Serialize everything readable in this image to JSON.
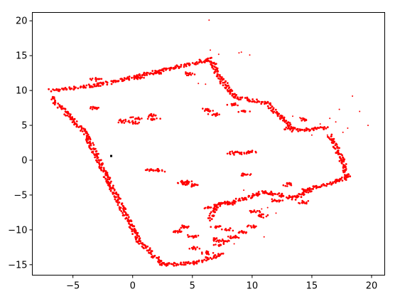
{
  "colors": {
    "points": "#ff0000",
    "robot": "#000000",
    "axes": "#000000",
    "background": "#ffffff"
  },
  "chart_data": {
    "type": "scatter",
    "title": "",
    "xlabel": "",
    "ylabel": "",
    "xlim": [
      -8.4,
      21.1
    ],
    "ylim": [
      -16.5,
      21.2
    ],
    "xticks": [
      -5,
      0,
      5,
      10,
      15,
      20
    ],
    "yticks": [
      -15,
      -10,
      -5,
      0,
      5,
      10,
      15,
      20
    ],
    "xtick_labels": [
      "−5",
      "0",
      "5",
      "10",
      "15",
      "20"
    ],
    "ytick_labels": [
      "−15",
      "−10",
      "−5",
      "0",
      "5",
      "10",
      "15",
      "20"
    ],
    "grid": false,
    "legend": "none",
    "robot_marker": {
      "x": -1.8,
      "y": 0.6
    },
    "wall_segments": [
      [
        [
          -6.8,
          10.0
        ],
        [
          -2.8,
          10.8
        ]
      ],
      [
        [
          -2.8,
          10.8
        ],
        [
          6.5,
          14.5
        ]
      ],
      [
        [
          -6.8,
          9.0
        ],
        [
          -4.0,
          4.0
        ]
      ],
      [
        [
          -4.0,
          4.0
        ],
        [
          -3.3,
          1.5
        ]
      ],
      [
        [
          -3.3,
          1.5
        ],
        [
          -2.0,
          -3.0
        ]
      ],
      [
        [
          -2.0,
          -3.0
        ],
        [
          0.5,
          -11.5
        ]
      ],
      [
        [
          0.5,
          -11.5
        ],
        [
          2.5,
          -15.0
        ]
      ],
      [
        [
          2.5,
          -15.0
        ],
        [
          5.0,
          -14.8
        ]
      ],
      [
        [
          5.0,
          -14.8
        ],
        [
          7.5,
          -13.5
        ]
      ],
      [
        [
          6.5,
          14.5
        ],
        [
          7.4,
          11.5
        ]
      ],
      [
        [
          7.4,
          11.5
        ],
        [
          8.7,
          9.0
        ]
      ],
      [
        [
          8.7,
          9.0
        ],
        [
          11.2,
          8.2
        ]
      ],
      [
        [
          11.2,
          8.2
        ],
        [
          12.5,
          6.0
        ]
      ],
      [
        [
          12.5,
          6.0
        ],
        [
          13.5,
          4.3
        ]
      ],
      [
        [
          13.5,
          4.3
        ],
        [
          16.2,
          4.6
        ]
      ],
      [
        [
          16.5,
          3.5
        ],
        [
          17.3,
          1.0
        ]
      ],
      [
        [
          17.3,
          1.0
        ],
        [
          18.0,
          -2.5
        ]
      ],
      [
        [
          18.0,
          -2.5
        ],
        [
          16.5,
          -3.3
        ]
      ],
      [
        [
          16.5,
          -3.3
        ],
        [
          15.0,
          -4.0
        ]
      ],
      [
        [
          15.0,
          -4.0
        ],
        [
          13.5,
          -5.5
        ]
      ],
      [
        [
          13.5,
          -5.5
        ],
        [
          11.0,
          -4.5
        ]
      ],
      [
        [
          11.0,
          -4.5
        ],
        [
          9.5,
          -5.5
        ]
      ],
      [
        [
          9.5,
          -5.5
        ],
        [
          7.0,
          -6.5
        ]
      ],
      [
        [
          7.0,
          -6.5
        ],
        [
          6.5,
          -8.5
        ]
      ]
    ],
    "blobs": [
      [
        -0.8,
        5.6
      ],
      [
        0.0,
        5.4
      ],
      [
        0.3,
        6.0
      ],
      [
        1.6,
        6.4
      ],
      [
        1.8,
        5.9
      ],
      [
        -3.0,
        7.5
      ],
      [
        -3.0,
        11.6
      ],
      [
        0.4,
        11.8
      ],
      [
        2.2,
        12.6
      ],
      [
        4.7,
        12.4
      ],
      [
        6.2,
        7.2
      ],
      [
        6.8,
        6.6
      ],
      [
        9.3,
        7.1
      ],
      [
        8.4,
        8.0
      ],
      [
        1.6,
        -1.4
      ],
      [
        2.2,
        -1.5
      ],
      [
        4.2,
        -3.4
      ],
      [
        5.1,
        -3.6
      ],
      [
        4.5,
        -3.1
      ],
      [
        8.4,
        1.0
      ],
      [
        9.0,
        1.0
      ],
      [
        9.8,
        1.2
      ],
      [
        9.4,
        -2.0
      ],
      [
        5.2,
        -12.6
      ],
      [
        6.3,
        -13.3
      ],
      [
        7.3,
        -12.2
      ],
      [
        8.0,
        -10.0
      ],
      [
        8.5,
        -11.0
      ],
      [
        9.2,
        -10.4
      ],
      [
        10.0,
        -9.5
      ],
      [
        10.8,
        -8.0
      ],
      [
        7.0,
        -9.6
      ],
      [
        6.8,
        -11.4
      ],
      [
        7.6,
        -11.6
      ],
      [
        4.4,
        -9.6
      ],
      [
        3.9,
        -10.2
      ],
      [
        5.0,
        -10.9
      ],
      [
        6.4,
        -6.8
      ],
      [
        8.0,
        -6.2
      ],
      [
        10.2,
        -7.3
      ],
      [
        12.0,
        -5.8
      ],
      [
        13.0,
        -3.5
      ],
      [
        14.5,
        -4.3
      ],
      [
        14.3,
        -6.0
      ],
      [
        14.5,
        5.8
      ],
      [
        13.2,
        4.5
      ]
    ],
    "scatter": [
      [
        18.4,
        9.2
      ],
      [
        19.0,
        7.0
      ],
      [
        19.7,
        5.0
      ],
      [
        17.0,
        5.5
      ],
      [
        16.5,
        6.0
      ],
      [
        18.0,
        4.6
      ],
      [
        17.6,
        4.0
      ],
      [
        16.3,
        3.6
      ],
      [
        17.3,
        7.3
      ],
      [
        15.7,
        5.2
      ],
      [
        15.0,
        3.6
      ],
      [
        12.3,
        6.3
      ],
      [
        13.4,
        6.3
      ],
      [
        14.0,
        6.1
      ],
      [
        9.1,
        15.5
      ],
      [
        8.9,
        15.4
      ],
      [
        9.8,
        15.1
      ],
      [
        6.5,
        15.8
      ],
      [
        7.2,
        15.2
      ],
      [
        6.4,
        20.1
      ],
      [
        5.5,
        11.0
      ],
      [
        6.1,
        10.9
      ],
      [
        9.3,
        -4.3
      ],
      [
        10.8,
        -7.0
      ],
      [
        11.3,
        -6.8
      ],
      [
        12.0,
        -7.6
      ],
      [
        11.0,
        -11.0
      ],
      [
        8.5,
        -12.0
      ]
    ]
  }
}
